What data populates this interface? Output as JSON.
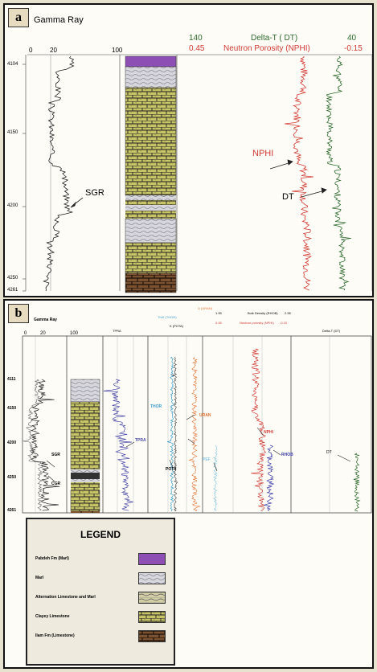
{
  "panel_a": {
    "label": "a",
    "gamma_title": "Gamma Ray",
    "gamma_scale": [
      "0",
      "20",
      "100"
    ],
    "dt_title": "Delta-T ( DT)",
    "dt_min": "140",
    "dt_max": "40",
    "nphi_title": "Neutron  Porosity (NPHI)",
    "nphi_min": "0.45",
    "nphi_max": "-0.15",
    "depths": [
      "4104",
      "4150",
      "4200",
      "4250",
      "4261"
    ],
    "annotations": {
      "sgr": "SGR",
      "nphi": "NPHI",
      "dt": "DT"
    }
  },
  "panel_b": {
    "label": "b",
    "gamma_title": "Gamma Ray",
    "gamma_scale": [
      "0",
      "20",
      "100"
    ],
    "depths": [
      "4111",
      "4150",
      "4200",
      "4250",
      "4261"
    ],
    "annotations": {
      "sgr": "SGR",
      "cgr": "CGR",
      "tpra": "TPRA",
      "thor": "THOR",
      "uran": "URAN",
      "pota": "POTA",
      "pef": "PEF",
      "nphi": "NPHI",
      "rhob": "RHOB",
      "dt": "DT"
    },
    "headers": {
      "tpra": "TPRA",
      "thor": "Th/K (THOR)",
      "uran": "U (URAN)",
      "pota": "K (POTA)",
      "rhob": "Bulk Density (RHOB)",
      "rhob_min": "1.95",
      "rhob_max": "2.95",
      "nphi": "Neutron porosity (NPHI)",
      "nphi_min": "0.45",
      "nphi_max": "-0.15",
      "dt": "Delta-T (DT)"
    }
  },
  "legend": {
    "title": "LEGEND",
    "items": [
      {
        "label": "Pabdeh Fm (Marl)",
        "pattern": "pabdeh"
      },
      {
        "label": "Marl",
        "pattern": "marl"
      },
      {
        "label": "Alternation Limestone and Marl",
        "pattern": "alternation"
      },
      {
        "label": "Clayey Limestone",
        "pattern": "clayey"
      },
      {
        "label": "Ilam Fm (Limestone)",
        "pattern": "ilam"
      }
    ]
  },
  "colors": {
    "nphi": "#d23a34",
    "dt": "#2e6a2e",
    "gamma": "#222222",
    "thor": "#3a9bc8",
    "uran": "#e07030",
    "pef": "#8ec8e0",
    "rhob": "#3a3aa8",
    "tpra": "#4a4aa8",
    "pabdeh": "#8e4fb4",
    "limestone": "#c8c468",
    "ilam": "#6b4a2a",
    "marl": "#d4d4d8"
  }
}
